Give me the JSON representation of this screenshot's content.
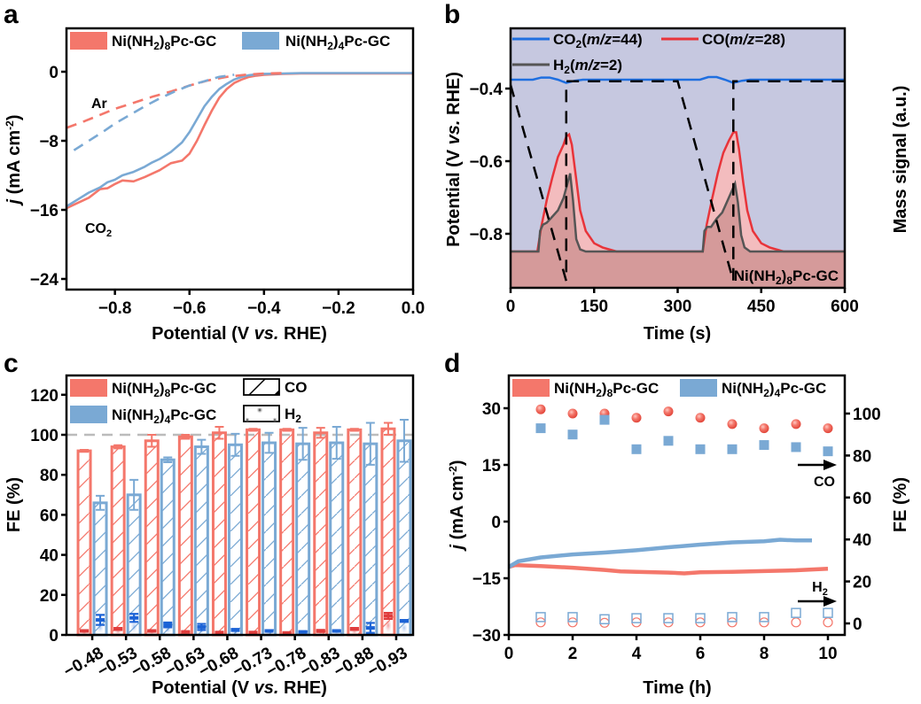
{
  "colors": {
    "ni8": "#f4776b",
    "ni4": "#7aa9d4",
    "co2_line": "#1f6fe0",
    "co_line": "#e8343a",
    "h2_line": "#555555",
    "bg_blue": "#c6c8e0",
    "bg_red": "#d59a9a",
    "co_fill": "#f5bcbc",
    "h2_bar_ni8": "#e03c3c",
    "h2_bar_ni4": "#1c63d6",
    "ref_line": "#bbbbbb"
  },
  "chart_data": [
    {
      "panel": "a",
      "type": "line",
      "panel_label": "a",
      "xlabel": "Potential (V vs. RHE)",
      "ylabel": "j (mA cm-2)",
      "xlim": [
        -0.93,
        0.0
      ],
      "ylim": [
        -25.5,
        5
      ],
      "xticks": [
        -0.8,
        -0.6,
        -0.4,
        -0.2,
        0.0
      ],
      "xtick_labels": [
        "−0.8",
        "−0.6",
        "−0.4",
        "−0.2",
        "0.0"
      ],
      "yticks": [
        0,
        -8,
        -16,
        -24
      ],
      "ytick_labels": [
        "0",
        "−8",
        "−16",
        "−24"
      ],
      "legend": [
        "Ni(NH2)8Pc-GC",
        "Ni(NH2)4Pc-GC"
      ],
      "legend_position": "top",
      "annotations": [
        "Ar",
        "CO2"
      ],
      "series": [
        {
          "name": "Ni(NH2)8Pc-GC CO2",
          "color_key": "ni8",
          "dash": false,
          "x": [
            -0.93,
            -0.9,
            -0.87,
            -0.84,
            -0.82,
            -0.8,
            -0.78,
            -0.75,
            -0.72,
            -0.7,
            -0.68,
            -0.65,
            -0.62,
            -0.6,
            -0.58,
            -0.56,
            -0.54,
            -0.52,
            -0.5,
            -0.48,
            -0.46,
            -0.44,
            -0.42,
            -0.4,
            -0.35,
            -0.3,
            -0.2,
            -0.1,
            0.0
          ],
          "y": [
            -15.8,
            -15.2,
            -14.6,
            -13.6,
            -13.5,
            -13.0,
            -12.6,
            -12.7,
            -12.2,
            -11.8,
            -11.4,
            -10.6,
            -10.3,
            -9.5,
            -8.0,
            -6.2,
            -4.5,
            -3.0,
            -2.0,
            -1.3,
            -0.9,
            -0.6,
            -0.45,
            -0.35,
            -0.25,
            -0.2,
            -0.2,
            -0.2,
            -0.2
          ]
        },
        {
          "name": "Ni(NH2)4Pc-GC CO2",
          "color_key": "ni4",
          "dash": false,
          "x": [
            -0.93,
            -0.9,
            -0.87,
            -0.84,
            -0.82,
            -0.8,
            -0.78,
            -0.75,
            -0.72,
            -0.7,
            -0.68,
            -0.65,
            -0.62,
            -0.6,
            -0.58,
            -0.56,
            -0.54,
            -0.52,
            -0.5,
            -0.48,
            -0.46,
            -0.44,
            -0.42,
            -0.4,
            -0.35,
            -0.3,
            -0.2,
            -0.1,
            0.0
          ],
          "y": [
            -15.6,
            -14.8,
            -14.0,
            -13.4,
            -12.8,
            -12.5,
            -12.0,
            -11.6,
            -11.0,
            -10.5,
            -10.1,
            -9.3,
            -8.2,
            -7.0,
            -5.5,
            -4.0,
            -2.9,
            -2.0,
            -1.4,
            -0.9,
            -0.6,
            -0.4,
            -0.3,
            -0.25,
            -0.2,
            -0.15,
            -0.15,
            -0.15,
            -0.15
          ]
        },
        {
          "name": "Ni(NH2)8Pc-GC Ar",
          "color_key": "ni8",
          "dash": true,
          "x": [
            -0.93,
            -0.88,
            -0.84,
            -0.8,
            -0.75,
            -0.7,
            -0.65,
            -0.6,
            -0.55,
            -0.5,
            -0.45,
            -0.4,
            -0.35
          ],
          "y": [
            -6.5,
            -5.7,
            -5.0,
            -4.3,
            -3.6,
            -2.9,
            -2.3,
            -1.6,
            -1.0,
            -0.6,
            -0.35,
            -0.2,
            -0.15
          ]
        },
        {
          "name": "Ni(NH2)4Pc-GC Ar",
          "color_key": "ni4",
          "dash": true,
          "x": [
            -0.91,
            -0.87,
            -0.83,
            -0.8,
            -0.76,
            -0.72,
            -0.68,
            -0.64,
            -0.6,
            -0.56,
            -0.52,
            -0.48
          ],
          "y": [
            -9.1,
            -8.0,
            -6.9,
            -6.0,
            -5.0,
            -4.0,
            -3.1,
            -2.3,
            -1.6,
            -1.1,
            -0.6,
            -0.35
          ]
        }
      ]
    },
    {
      "panel": "b",
      "type": "area",
      "panel_label": "b",
      "xlabel": "Time (s)",
      "ylabel": "Potential (V vs. RHE)",
      "ylabel_right": "Mass signal (a.u.)",
      "xlim": [
        0,
        600
      ],
      "ylim": [
        -0.955,
        -0.24
      ],
      "xticks": [
        0,
        150,
        300,
        450,
        600
      ],
      "xtick_labels": [
        "0",
        "150",
        "300",
        "450",
        "600"
      ],
      "yticks": [
        -0.4,
        -0.6,
        -0.8
      ],
      "ytick_labels": [
        "−0.4",
        "−0.6",
        "−0.8"
      ],
      "legend": [
        "CO2(m/z=44)",
        "CO(m/z=28)",
        "H2(m/z=2)"
      ],
      "legend_position": "top-left",
      "annotation": "Ni(NH2)8Pc-GC",
      "potential_profile": {
        "t": [
          0,
          100,
          100,
          300,
          400,
          400,
          600
        ],
        "v": [
          -0.39,
          -0.93,
          -0.38,
          -0.38,
          -0.93,
          -0.38,
          -0.38
        ]
      },
      "mass_signal_note": "signals plotted in relative units 0-1 (baseline 0, axis top 1)",
      "series": [
        {
          "name": "CO2(m/z=44)",
          "color_key": "co2_line",
          "t": [
            0,
            40,
            55,
            70,
            85,
            100,
            115,
            130,
            300,
            340,
            355,
            370,
            385,
            400,
            415,
            430,
            600
          ],
          "v": [
            0.85,
            0.85,
            0.87,
            0.87,
            0.85,
            0.82,
            0.84,
            0.85,
            0.85,
            0.85,
            0.875,
            0.875,
            0.85,
            0.82,
            0.84,
            0.85,
            0.85
          ]
        },
        {
          "name": "CO(m/z=28)",
          "color_key": "co_line",
          "t": [
            0,
            48,
            55,
            65,
            75,
            85,
            95,
            100,
            105,
            110,
            118,
            125,
            135,
            150,
            165,
            190,
            300,
            345,
            352,
            362,
            372,
            382,
            392,
            400,
            405,
            410,
            418,
            425,
            435,
            450,
            465,
            490,
            600
          ],
          "v": [
            0.0,
            0.0,
            0.12,
            0.25,
            0.36,
            0.46,
            0.52,
            0.56,
            0.57,
            0.52,
            0.35,
            0.2,
            0.1,
            0.04,
            0.02,
            0.0,
            0.0,
            0.0,
            0.13,
            0.26,
            0.38,
            0.48,
            0.54,
            0.58,
            0.58,
            0.5,
            0.33,
            0.2,
            0.1,
            0.04,
            0.02,
            0.0,
            0.0
          ]
        },
        {
          "name": "H2(m/z=2)",
          "color_key": "h2_line",
          "t": [
            0,
            50,
            53,
            58,
            65,
            75,
            85,
            95,
            102,
            107,
            112,
            118,
            125,
            135,
            300,
            345,
            348,
            353,
            360,
            370,
            380,
            390,
            398,
            403,
            408,
            414,
            420,
            430,
            600
          ],
          "v": [
            0.0,
            0.0,
            0.1,
            0.13,
            0.14,
            0.17,
            0.2,
            0.26,
            0.33,
            0.38,
            0.25,
            0.06,
            0.01,
            0.0,
            0.0,
            0.0,
            0.1,
            0.12,
            0.12,
            0.16,
            0.19,
            0.25,
            0.3,
            0.33,
            0.24,
            0.08,
            0.02,
            0.0,
            0.0
          ]
        }
      ]
    },
    {
      "panel": "c",
      "type": "bar",
      "panel_label": "c",
      "xlabel": "Potential (V vs. RHE)",
      "ylabel": "FE (%)",
      "ylim": [
        0,
        130
      ],
      "yticks": [
        0,
        20,
        40,
        60,
        80,
        100,
        120
      ],
      "ytick_labels": [
        "0",
        "20",
        "40",
        "60",
        "80",
        "100",
        "120"
      ],
      "reference_line": 100,
      "categories": [
        "−0.48",
        "−0.53",
        "−0.58",
        "−0.63",
        "−0.68",
        "−0.73",
        "−0.78",
        "−0.83",
        "−0.88",
        "−0.93"
      ],
      "legend": [
        "Ni(NH2)8Pc-GC",
        "Ni(NH2)4Pc-GC",
        "CO",
        "H2"
      ],
      "legend_position": "top-left",
      "series": [
        {
          "name": "Ni(NH2)8Pc-GC CO",
          "color_key": "ni8",
          "product": "CO",
          "values": [
            92,
            94,
            97,
            99,
            101,
            102.5,
            102.5,
            101,
            102.5,
            103
          ],
          "errors": [
            0.5,
            0.8,
            3,
            1,
            3,
            0.5,
            0.5,
            2.5,
            0.5,
            3
          ]
        },
        {
          "name": "Ni(NH2)4Pc-GC CO",
          "color_key": "ni4",
          "product": "CO",
          "values": [
            66,
            70,
            87.5,
            94,
            95,
            96,
            95.5,
            96,
            95.5,
            97
          ],
          "errors": [
            3.5,
            7.5,
            1.2,
            3.5,
            5.5,
            5,
            8,
            8,
            10.5,
            10.5
          ]
        },
        {
          "name": "Ni(NH2)8Pc-GC H2",
          "color_key": "h2_bar_ni8",
          "product": "H2",
          "values": [
            2,
            3,
            2,
            1.5,
            1.2,
            1.2,
            1,
            2,
            3,
            9.5
          ],
          "errors": [
            0.3,
            0.5,
            0.3,
            0.3,
            0.3,
            0.3,
            0.3,
            0.5,
            0.5,
            1.5
          ]
        },
        {
          "name": "Ni(NH2)4Pc-GC H2",
          "color_key": "h2_bar_ni4",
          "product": "H2",
          "values": [
            7.5,
            8.5,
            5,
            4,
            2.5,
            2,
            1.5,
            2,
            3.5,
            7
          ],
          "errors": [
            2.5,
            2,
            1.2,
            1.5,
            0.5,
            0.3,
            0.3,
            0.3,
            2.5,
            0.5
          ]
        }
      ]
    },
    {
      "panel": "d",
      "type": "scatter",
      "panel_label": "d",
      "xlabel": "Time (h)",
      "ylabel": "j (mA cm-2)",
      "ylabel_right": "FE (%)",
      "xlim": [
        0,
        10.5
      ],
      "ylim": [
        -30,
        39
      ],
      "ylim_right": [
        -5,
        109.5
      ],
      "xticks": [
        0,
        2,
        4,
        6,
        8,
        10
      ],
      "xtick_labels": [
        "0",
        "2",
        "4",
        "6",
        "8",
        "10"
      ],
      "yticks": [
        30,
        15,
        0,
        -15,
        -30
      ],
      "ytick_labels": [
        "30",
        "15",
        "0",
        "−15",
        "−30"
      ],
      "yticks_right": [
        100,
        80,
        60,
        40,
        20,
        0
      ],
      "ytick_labels_right": [
        "100",
        "80",
        "60",
        "40",
        "20",
        "0"
      ],
      "legend": [
        "Ni(NH2)8Pc-GC",
        "Ni(NH2)4Pc-GC"
      ],
      "legend_position": "top",
      "annotations": [
        "CO",
        "H2"
      ],
      "current": [
        {
          "name": "Ni(NH2)8Pc-GC j",
          "color_key": "ni8",
          "t": [
            0,
            0.2,
            1,
            2,
            3,
            3.5,
            4,
            5,
            5.5,
            6,
            7,
            8,
            9,
            10
          ],
          "j": [
            -12,
            -11.5,
            -11.8,
            -12.2,
            -12.8,
            -13.2,
            -13.3,
            -13.5,
            -13.7,
            -13.4,
            -13.3,
            -13.1,
            -12.9,
            -12.5
          ]
        },
        {
          "name": "Ni(NH2)4Pc-GC j",
          "color_key": "ni4",
          "t": [
            0,
            0.3,
            1,
            2,
            3,
            4,
            5,
            6,
            7,
            8,
            8.5,
            9,
            9.5
          ],
          "j": [
            -12,
            -10.5,
            -9.5,
            -8.7,
            -8.2,
            -7.6,
            -6.8,
            -6.1,
            -5.5,
            -5.2,
            -4.8,
            -5.0,
            -5.0
          ]
        }
      ],
      "fe": [
        {
          "name": "Ni(NH2)8Pc-GC FE CO",
          "color_key": "ni8",
          "marker": "filled-circle",
          "t": [
            1,
            2,
            3,
            4,
            5,
            6,
            7,
            8,
            9,
            10
          ],
          "fe": [
            102,
            100,
            100,
            98,
            101,
            98,
            95,
            93,
            95,
            93
          ]
        },
        {
          "name": "Ni(NH2)4Pc-GC FE CO",
          "color_key": "ni4",
          "marker": "filled-square",
          "t": [
            1,
            2,
            3,
            4,
            5,
            6,
            7,
            8,
            9,
            10
          ],
          "fe": [
            93,
            90,
            97,
            83,
            87,
            83,
            83,
            85,
            84,
            82
          ]
        },
        {
          "name": "Ni(NH2)8Pc-GC FE H2",
          "color_key": "ni8",
          "marker": "open-circle",
          "t": [
            1,
            2,
            3,
            4,
            5,
            6,
            7,
            8,
            9,
            10
          ],
          "fe": [
            0.5,
            0.5,
            0.3,
            0.5,
            0.5,
            0.5,
            0.5,
            0.5,
            0.5,
            0.5
          ]
        },
        {
          "name": "Ni(NH2)4Pc-GC FE H2",
          "color_key": "ni4",
          "marker": "open-square",
          "t": [
            1,
            2,
            3,
            4,
            5,
            6,
            7,
            8,
            9,
            10
          ],
          "fe": [
            3,
            3,
            2,
            2.5,
            2.5,
            2.5,
            3,
            3,
            5,
            5
          ]
        }
      ]
    }
  ]
}
